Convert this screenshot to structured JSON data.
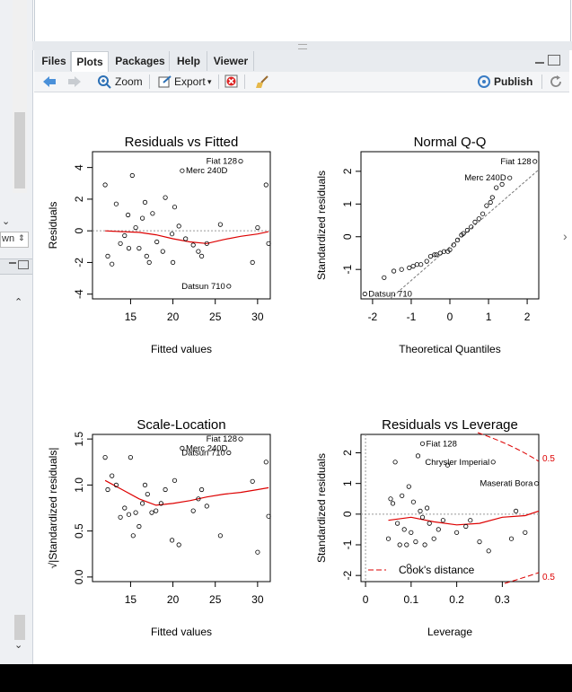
{
  "tabs": [
    {
      "label": "Files"
    },
    {
      "label": "Plots"
    },
    {
      "label": "Packages"
    },
    {
      "label": "Help"
    },
    {
      "label": "Viewer"
    }
  ],
  "active_tab": "Plots",
  "toolbar": {
    "zoom_label": "Zoom",
    "export_label": "Export",
    "export_arrow": "▾",
    "publish_label": "Publish"
  },
  "left_strip": {
    "dropdown_text": "wn",
    "dropdown_arrow": "⇕"
  },
  "icons": {
    "back": "back-arrow-icon",
    "forward": "forward-arrow-icon",
    "zoom": "zoom-icon",
    "export": "export-icon",
    "remove": "remove-plot-icon",
    "clear": "broom-icon",
    "publish": "publish-icon",
    "refresh": "refresh-icon",
    "minimize": "minimize-icon",
    "maximize": "maximize-icon"
  },
  "chart_data": [
    {
      "type": "scatter",
      "title": "Residuals vs Fitted",
      "xlabel": "Fitted values",
      "ylabel": "Residuals",
      "xlim": [
        10.5,
        31.5
      ],
      "ylim": [
        -4.3,
        5.0
      ],
      "xticks": [
        15,
        20,
        25,
        30
      ],
      "yticks": [
        -4,
        -2,
        0,
        2,
        4
      ],
      "ref_line": 0,
      "points": [
        [
          12,
          2.9
        ],
        [
          12.3,
          -1.6
        ],
        [
          12.8,
          -2.1
        ],
        [
          13.3,
          1.7
        ],
        [
          13.8,
          -0.8
        ],
        [
          14.3,
          -0.3
        ],
        [
          14.7,
          1.0
        ],
        [
          14.8,
          -1.1
        ],
        [
          15.2,
          3.5
        ],
        [
          15.6,
          0.2
        ],
        [
          16.0,
          -1.1
        ],
        [
          16.4,
          0.8
        ],
        [
          16.7,
          1.8
        ],
        [
          16.9,
          -1.6
        ],
        [
          17.2,
          -2.0
        ],
        [
          17.6,
          1.1
        ],
        [
          18.1,
          -0.7
        ],
        [
          18.8,
          -1.3
        ],
        [
          19.1,
          2.1
        ],
        [
          19.9,
          -0.2
        ],
        [
          20.0,
          -2.0
        ],
        [
          20.2,
          1.5
        ],
        [
          20.7,
          0.3
        ],
        [
          21.1,
          3.8
        ],
        [
          21.5,
          -0.5
        ],
        [
          22.4,
          -0.9
        ],
        [
          23.0,
          -1.3
        ],
        [
          23.4,
          -1.6
        ],
        [
          24.0,
          -0.8
        ],
        [
          25.6,
          0.4
        ],
        [
          26.6,
          -3.5
        ],
        [
          28.0,
          4.4
        ],
        [
          29.4,
          -2.0
        ],
        [
          30.0,
          0.2
        ],
        [
          31.0,
          2.9
        ],
        [
          31.3,
          -0.8
        ]
      ],
      "smooth_line": [
        [
          12,
          0
        ],
        [
          14,
          -0.05
        ],
        [
          16,
          -0.1
        ],
        [
          18,
          -0.25
        ],
        [
          20,
          -0.5
        ],
        [
          22,
          -0.7
        ],
        [
          24,
          -0.8
        ],
        [
          26,
          -0.55
        ],
        [
          28,
          -0.35
        ],
        [
          30,
          -0.2
        ],
        [
          31.3,
          -0.05
        ]
      ],
      "annotations": [
        {
          "text": "Fiat 128",
          "x": 28.0,
          "y": 4.4,
          "side": "left"
        },
        {
          "text": "Merc 240D",
          "x": 21.1,
          "y": 3.8,
          "side": "right"
        },
        {
          "text": "Datsun 710",
          "x": 26.6,
          "y": -3.5,
          "side": "left"
        }
      ]
    },
    {
      "type": "scatter",
      "title": "Normal Q-Q",
      "xlabel": "Theoretical Quantiles",
      "ylabel": "Standardized residuals",
      "xlim": [
        -2.3,
        2.3
      ],
      "ylim": [
        -1.9,
        2.6
      ],
      "xticks": [
        -2,
        -1,
        0,
        1,
        2
      ],
      "yticks": [
        -1,
        0,
        1,
        2
      ],
      "ref_line": "diag",
      "points": [
        [
          -2.2,
          -1.75
        ],
        [
          -1.7,
          -1.25
        ],
        [
          -1.45,
          -1.05
        ],
        [
          -1.25,
          -1.0
        ],
        [
          -1.05,
          -0.95
        ],
        [
          -0.95,
          -0.9
        ],
        [
          -0.85,
          -0.85
        ],
        [
          -0.75,
          -0.85
        ],
        [
          -0.6,
          -0.75
        ],
        [
          -0.5,
          -0.6
        ],
        [
          -0.4,
          -0.55
        ],
        [
          -0.35,
          -0.55
        ],
        [
          -0.25,
          -0.5
        ],
        [
          -0.15,
          -0.45
        ],
        [
          -0.05,
          -0.45
        ],
        [
          0.0,
          -0.4
        ],
        [
          0.1,
          -0.25
        ],
        [
          0.2,
          -0.1
        ],
        [
          0.3,
          0.05
        ],
        [
          0.35,
          0.1
        ],
        [
          0.45,
          0.2
        ],
        [
          0.55,
          0.3
        ],
        [
          0.65,
          0.45
        ],
        [
          0.75,
          0.55
        ],
        [
          0.85,
          0.7
        ],
        [
          0.95,
          0.95
        ],
        [
          1.05,
          1.05
        ],
        [
          1.1,
          1.2
        ],
        [
          1.2,
          1.5
        ],
        [
          1.35,
          1.6
        ],
        [
          1.55,
          1.8
        ],
        [
          2.2,
          2.3
        ]
      ],
      "annotations": [
        {
          "text": "Fiat 128",
          "x": 2.2,
          "y": 2.3,
          "side": "left"
        },
        {
          "text": "Merc 240D",
          "x": 1.55,
          "y": 1.8,
          "side": "left"
        },
        {
          "text": "Datsun 710",
          "x": -2.2,
          "y": -1.75,
          "side": "right"
        }
      ]
    },
    {
      "type": "scatter",
      "title": "Scale-Location",
      "xlabel": "Fitted values",
      "ylabel": "√|Standardized residuals|",
      "xlim": [
        10.5,
        31.5
      ],
      "ylim": [
        -0.05,
        1.55
      ],
      "xticks": [
        15,
        20,
        25,
        30
      ],
      "yticks": [
        0.0,
        0.5,
        1.0,
        1.5
      ],
      "points": [
        [
          12,
          1.3
        ],
        [
          12.3,
          0.95
        ],
        [
          12.8,
          1.1
        ],
        [
          13.3,
          1.0
        ],
        [
          13.8,
          0.65
        ],
        [
          14.3,
          0.75
        ],
        [
          14.8,
          0.68
        ],
        [
          15.0,
          1.3
        ],
        [
          15.3,
          0.45
        ],
        [
          15.6,
          0.7
        ],
        [
          16.0,
          0.55
        ],
        [
          16.4,
          0.8
        ],
        [
          16.7,
          1.0
        ],
        [
          17.0,
          0.9
        ],
        [
          17.5,
          0.7
        ],
        [
          18.0,
          0.72
        ],
        [
          18.6,
          0.8
        ],
        [
          19.1,
          0.95
        ],
        [
          19.9,
          0.4
        ],
        [
          20.2,
          1.05
        ],
        [
          20.7,
          0.35
        ],
        [
          21.1,
          1.4
        ],
        [
          22.4,
          0.72
        ],
        [
          23.0,
          0.85
        ],
        [
          23.4,
          0.95
        ],
        [
          24.0,
          0.77
        ],
        [
          25.6,
          0.45
        ],
        [
          26.6,
          1.35
        ],
        [
          28.0,
          1.5
        ],
        [
          29.4,
          1.04
        ],
        [
          30.0,
          0.27
        ],
        [
          31.0,
          1.25
        ],
        [
          31.3,
          0.66
        ]
      ],
      "smooth_line": [
        [
          12,
          1.05
        ],
        [
          14,
          0.95
        ],
        [
          16,
          0.85
        ],
        [
          18,
          0.78
        ],
        [
          20,
          0.8
        ],
        [
          22,
          0.83
        ],
        [
          24,
          0.87
        ],
        [
          26,
          0.9
        ],
        [
          28,
          0.92
        ],
        [
          30,
          0.95
        ],
        [
          31.3,
          0.97
        ]
      ],
      "annotations": [
        {
          "text": "Fiat 128",
          "x": 28.0,
          "y": 1.5,
          "side": "left"
        },
        {
          "text": "Merc 240D",
          "x": 21.1,
          "y": 1.4,
          "side": "right"
        },
        {
          "text": "Datsun 710",
          "x": 26.6,
          "y": 1.35,
          "side": "left"
        }
      ]
    },
    {
      "type": "scatter",
      "title": "Residuals vs Leverage",
      "xlabel": "Leverage",
      "ylabel": "Standardized residuals",
      "xlim": [
        -0.01,
        0.38
      ],
      "ylim": [
        -2.2,
        2.6
      ],
      "xticks": [
        0.0,
        0.1,
        0.2,
        0.3
      ],
      "yticks": [
        -2,
        -1,
        0,
        1,
        2
      ],
      "ref_line": 0,
      "points": [
        [
          0.05,
          -0.8
        ],
        [
          0.055,
          0.5
        ],
        [
          0.06,
          0.35
        ],
        [
          0.065,
          1.7
        ],
        [
          0.07,
          -0.3
        ],
        [
          0.075,
          -1.0
        ],
        [
          0.08,
          0.6
        ],
        [
          0.085,
          -0.5
        ],
        [
          0.09,
          -1.0
        ],
        [
          0.095,
          0.9
        ],
        [
          0.1,
          -0.6
        ],
        [
          0.105,
          0.4
        ],
        [
          0.11,
          -0.9
        ],
        [
          0.115,
          1.9
        ],
        [
          0.12,
          0.1
        ],
        [
          0.125,
          -0.1
        ],
        [
          0.13,
          -1.0
        ],
        [
          0.135,
          0.2
        ],
        [
          0.14,
          -0.3
        ],
        [
          0.15,
          -0.8
        ],
        [
          0.16,
          -0.5
        ],
        [
          0.17,
          -0.2
        ],
        [
          0.18,
          1.6
        ],
        [
          0.2,
          -0.6
        ],
        [
          0.22,
          -0.4
        ],
        [
          0.23,
          -0.2
        ],
        [
          0.25,
          -0.9
        ],
        [
          0.27,
          -1.2
        ],
        [
          0.28,
          1.7
        ],
        [
          0.32,
          -0.8
        ],
        [
          0.33,
          0.1
        ],
        [
          0.35,
          -0.6
        ],
        [
          0.375,
          1.0
        ],
        [
          0.125,
          2.3
        ],
        [
          0.095,
          -1.7
        ]
      ],
      "smooth_line": [
        [
          0.05,
          -0.2
        ],
        [
          0.1,
          -0.1
        ],
        [
          0.15,
          -0.25
        ],
        [
          0.2,
          -0.35
        ],
        [
          0.25,
          -0.3
        ],
        [
          0.3,
          -0.1
        ],
        [
          0.35,
          -0.05
        ],
        [
          0.38,
          0.1
        ]
      ],
      "annotations": [
        {
          "text": "Fiat 128",
          "x": 0.125,
          "y": 2.3,
          "side": "right"
        },
        {
          "text": "Chrysler Imperial",
          "x": 0.28,
          "y": 1.7,
          "side": "left"
        },
        {
          "text": "Maserati Bora",
          "x": 0.375,
          "y": 1.0,
          "side": "left"
        }
      ],
      "cooks_label": "0.5",
      "legend": "Cook's distance"
    }
  ]
}
